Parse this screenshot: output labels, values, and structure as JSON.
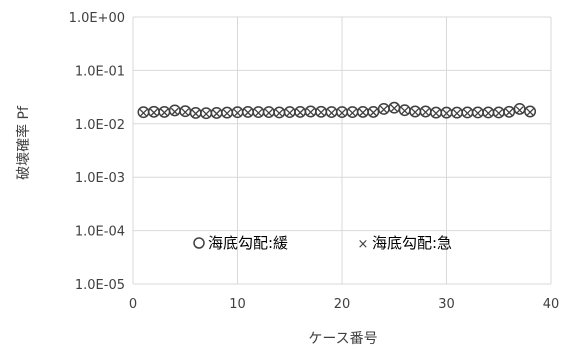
{
  "chart_data": {
    "type": "scatter",
    "xlabel": "ケース番号",
    "ylabel": "破壊確率 Pf",
    "xlim": [
      0,
      40
    ],
    "ylim": [
      1e-05,
      1
    ],
    "yscale": "log",
    "xticks": [
      "0",
      "10",
      "20",
      "30",
      "40"
    ],
    "yticks": [
      "1.0E-05",
      "1.0E-04",
      "1.0E-03",
      "1.0E-02",
      "1.0E-01",
      "1.0E+00"
    ],
    "grid": true,
    "legend_position": "bottom-center",
    "series": [
      {
        "name": "海底勾配:緩",
        "marker": "circle",
        "x": [
          1,
          2,
          3,
          4,
          5,
          6,
          7,
          8,
          9,
          10,
          11,
          12,
          13,
          14,
          15,
          16,
          17,
          18,
          19,
          20,
          21,
          22,
          23,
          24,
          25,
          26,
          27,
          28,
          29,
          30,
          31,
          32,
          33,
          34,
          35,
          36,
          37,
          38
        ],
        "y": [
          0.0165,
          0.0168,
          0.0167,
          0.0178,
          0.0172,
          0.016,
          0.0158,
          0.016,
          0.0162,
          0.0165,
          0.0167,
          0.0166,
          0.0166,
          0.0163,
          0.0166,
          0.0167,
          0.017,
          0.0168,
          0.0166,
          0.0166,
          0.0166,
          0.0167,
          0.0167,
          0.019,
          0.02,
          0.018,
          0.017,
          0.017,
          0.0162,
          0.0162,
          0.0162,
          0.0163,
          0.0163,
          0.0163,
          0.0163,
          0.0168,
          0.019,
          0.017
        ]
      },
      {
        "name": "海底勾配:急",
        "marker": "x",
        "x": [
          1,
          2,
          3,
          4,
          5,
          6,
          7,
          8,
          9,
          10,
          11,
          12,
          13,
          14,
          15,
          16,
          17,
          18,
          19,
          20,
          21,
          22,
          23,
          24,
          25,
          26,
          27,
          28,
          29,
          30,
          31,
          32,
          33,
          34,
          35,
          36,
          37,
          38
        ],
        "y": [
          0.016,
          0.0162,
          0.0162,
          0.0168,
          0.0165,
          0.0155,
          0.0153,
          0.0155,
          0.0157,
          0.016,
          0.0162,
          0.016,
          0.016,
          0.0158,
          0.016,
          0.0162,
          0.0165,
          0.0163,
          0.016,
          0.016,
          0.016,
          0.0162,
          0.0162,
          0.0185,
          0.0195,
          0.0175,
          0.0165,
          0.0165,
          0.0157,
          0.0157,
          0.0157,
          0.0158,
          0.0158,
          0.0158,
          0.0158,
          0.0163,
          0.018,
          0.0165
        ]
      }
    ]
  },
  "colors": {
    "grid": "#d9d9d9",
    "marker": "#404040",
    "text": "#404040"
  }
}
